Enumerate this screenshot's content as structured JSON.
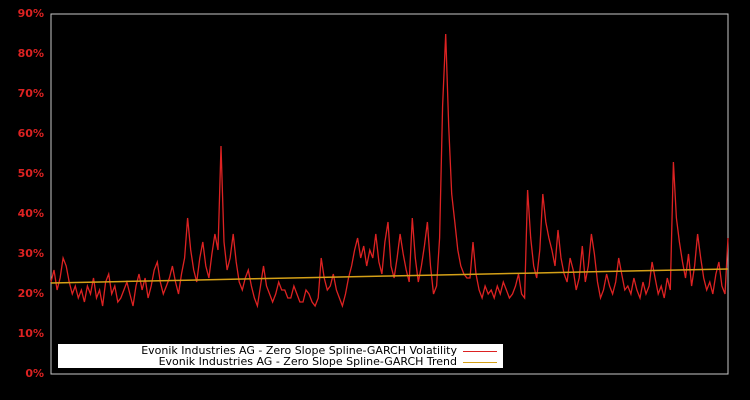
{
  "chart_data": {
    "type": "line",
    "title": "",
    "xlabel": "",
    "ylabel": "",
    "ylim": [
      0,
      90
    ],
    "yticks": [
      "0%",
      "10%",
      "20%",
      "30%",
      "40%",
      "50%",
      "60%",
      "70%",
      "80%",
      "90%"
    ],
    "grid": false,
    "legend_position": "lower-left-inside",
    "x_index": "sample index across time (no x tick labels shown)",
    "series": [
      {
        "name": "Evonik Industries AG - Zero Slope Spline-GARCH Volatility",
        "color": "#dd2222",
        "values": [
          23,
          26,
          21,
          24,
          29,
          27,
          23,
          20,
          22,
          19,
          21,
          18,
          22,
          20,
          24,
          19,
          21,
          17,
          23,
          25,
          20,
          22,
          18,
          19,
          21,
          23,
          20,
          17,
          22,
          25,
          21,
          24,
          19,
          22,
          26,
          28,
          23,
          20,
          22,
          24,
          27,
          23,
          20,
          25,
          29,
          39,
          31,
          26,
          23,
          29,
          33,
          27,
          24,
          30,
          35,
          31,
          57,
          33,
          26,
          29,
          35,
          28,
          23,
          21,
          24,
          26,
          22,
          19,
          17,
          22,
          27,
          22,
          20,
          18,
          20,
          23,
          21,
          21,
          19,
          19,
          22,
          20,
          18,
          18,
          21,
          20,
          18,
          17,
          19,
          29,
          24,
          21,
          22,
          25,
          21,
          19,
          17,
          20,
          24,
          27,
          31,
          34,
          29,
          32,
          27,
          31,
          29,
          35,
          28,
          25,
          33,
          38,
          27,
          24,
          29,
          35,
          30,
          26,
          23,
          39,
          29,
          23,
          27,
          32,
          38,
          27,
          20,
          22,
          34,
          67,
          85,
          62,
          45,
          38,
          31,
          27,
          25,
          24,
          24,
          33,
          25,
          21,
          19,
          22,
          20,
          21,
          19,
          22,
          20,
          23,
          21,
          19,
          20,
          22,
          25,
          20,
          19,
          46,
          34,
          27,
          24,
          31,
          45,
          38,
          34,
          31,
          27,
          36,
          29,
          25,
          23,
          29,
          26,
          21,
          24,
          32,
          23,
          27,
          35,
          30,
          23,
          19,
          21,
          25,
          22,
          20,
          23,
          29,
          25,
          21,
          22,
          20,
          24,
          21,
          19,
          23,
          20,
          22,
          28,
          24,
          20,
          22,
          19,
          24,
          21,
          53,
          39,
          33,
          28,
          24,
          30,
          22,
          27,
          35,
          29,
          24,
          21,
          23,
          20,
          25,
          28,
          22,
          20,
          34
        ]
      },
      {
        "name": "Evonik Industries AG - Zero Slope Spline-GARCH Trend",
        "color": "#d4a017",
        "start": 22.75,
        "end": 26.25,
        "shape": "near-linear, slightly increasing"
      }
    ]
  },
  "axes": {
    "y_tick_labels": [
      "90%",
      "80%",
      "70%",
      "60%",
      "50%",
      "40%",
      "30%",
      "20%",
      "10%",
      "0%"
    ]
  },
  "legend": {
    "items": [
      {
        "label": "Evonik Industries AG - Zero Slope Spline-GARCH Volatility",
        "color": "#dd2222"
      },
      {
        "label": "Evonik Industries AG - Zero Slope Spline-GARCH Trend",
        "color": "#d4a017"
      }
    ]
  },
  "colors": {
    "background": "#000000",
    "frame": "#c8c8c8",
    "tick_label": "#dd2222",
    "volatility": "#dd2222",
    "trend": "#d4a017"
  }
}
